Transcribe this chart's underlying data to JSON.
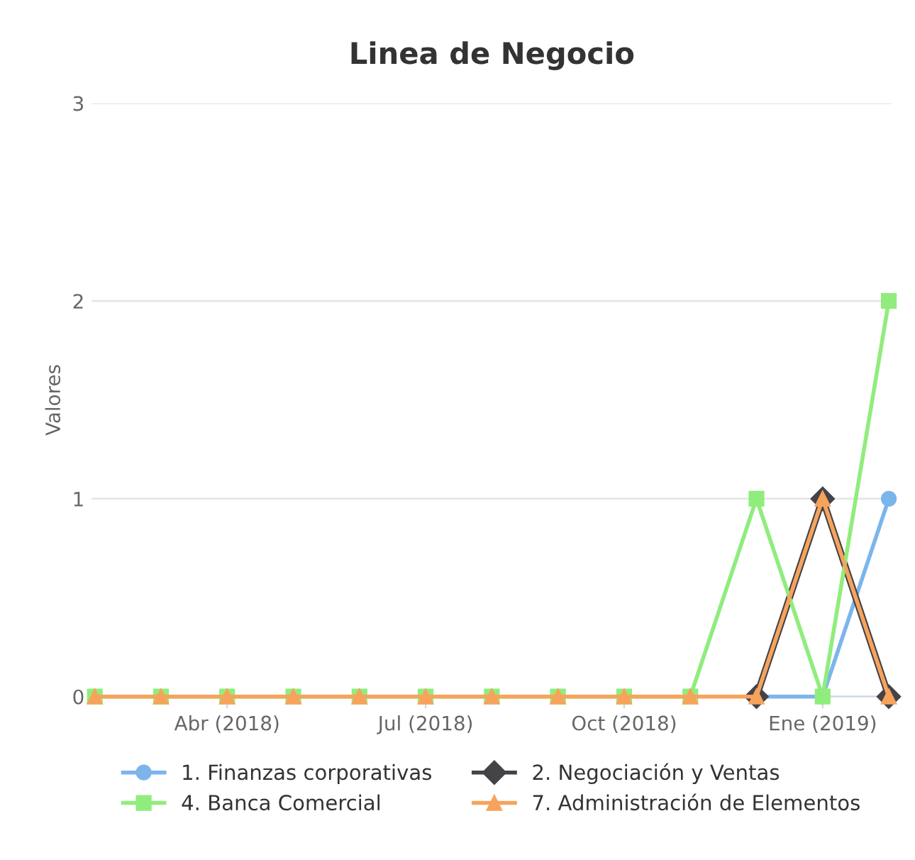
{
  "chart_data": {
    "type": "line",
    "title": "Linea de Negocio",
    "ylabel": "Valores",
    "categories": [
      null,
      null,
      "Abr (2018)",
      null,
      null,
      "Jul (2018)",
      null,
      null,
      "Oct (2018)",
      null,
      null,
      "Ene (2019)",
      null
    ],
    "series": [
      {
        "name": "1. Finanzas corporativas",
        "color": "#7cb5ec",
        "marker": "circle",
        "values": [
          null,
          null,
          null,
          null,
          null,
          null,
          null,
          null,
          null,
          null,
          0,
          0,
          1
        ]
      },
      {
        "name": "2. Negociación y Ventas",
        "color": "#434348",
        "marker": "diamond",
        "values": [
          null,
          null,
          null,
          null,
          null,
          null,
          null,
          null,
          null,
          null,
          0,
          1,
          0
        ]
      },
      {
        "name": "4. Banca Comercial",
        "color": "#90ed7d",
        "marker": "square",
        "values": [
          0,
          0,
          0,
          0,
          0,
          0,
          0,
          0,
          0,
          0,
          1,
          0,
          2
        ]
      },
      {
        "name": "7. Administración de Elementos",
        "color": "#f7a35c",
        "marker": "triangle",
        "values": [
          0,
          0,
          0,
          0,
          0,
          0,
          0,
          0,
          0,
          0,
          0,
          1,
          0
        ]
      }
    ],
    "ylim": [
      0,
      3
    ],
    "yticks": [
      0,
      1,
      2,
      3
    ],
    "grid": "y",
    "legend": "bottom",
    "line_style": "solid"
  }
}
